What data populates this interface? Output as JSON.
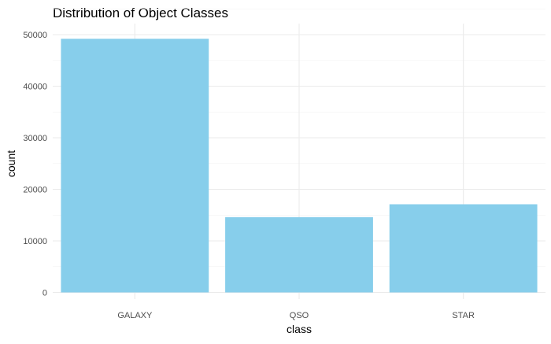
{
  "chart_data": {
    "type": "bar",
    "title": "Distribution of Object Classes",
    "xlabel": "class",
    "ylabel": "count",
    "categories": [
      "GALAXY",
      "QSO",
      "STAR"
    ],
    "values": [
      49200,
      14600,
      17100
    ],
    "ylim": [
      0,
      50000
    ],
    "yticks": [
      0,
      10000,
      20000,
      30000,
      40000,
      50000
    ],
    "ytick_labels": [
      "0",
      "10000",
      "20000",
      "30000",
      "40000",
      "50000"
    ],
    "grid": true,
    "legend": "none",
    "bar_color": "#87CEEB",
    "background": "#ffffff"
  }
}
